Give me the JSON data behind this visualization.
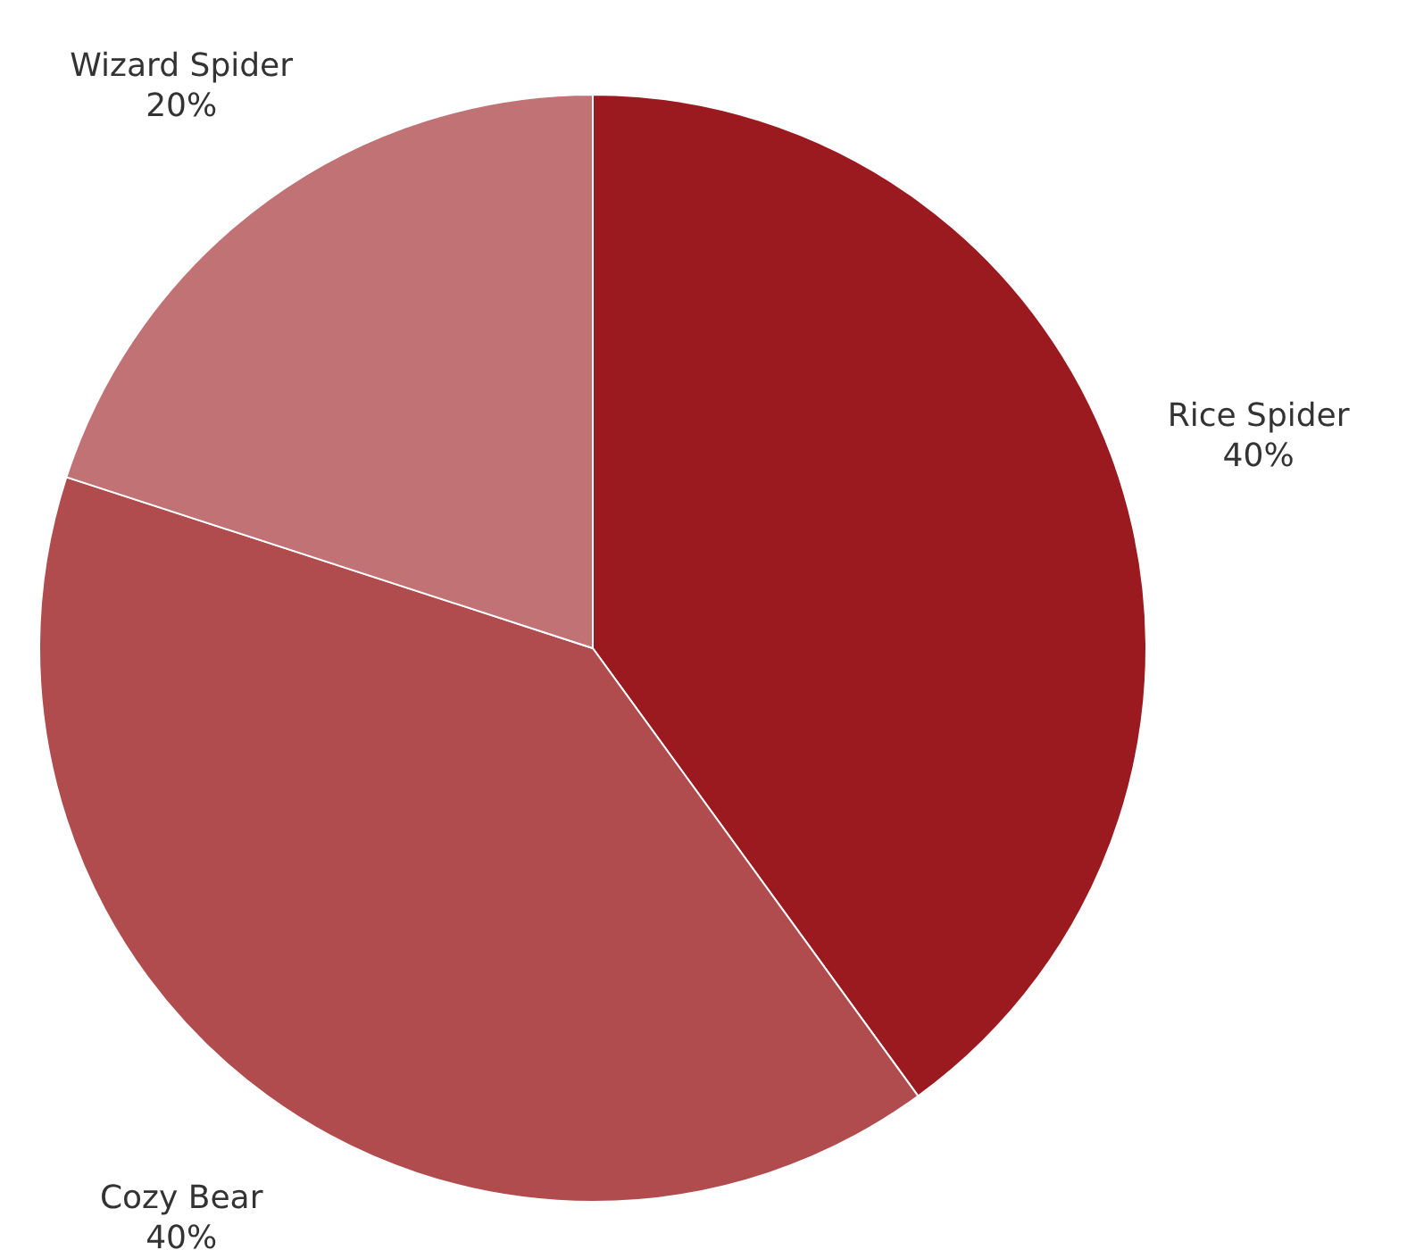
{
  "chart_data": {
    "type": "pie",
    "categories": [
      "Rice Spider",
      "Cozy Bear",
      "Wizard Spider"
    ],
    "values": [
      40,
      40,
      20
    ],
    "colors": [
      "#9b1a20",
      "#b04b4e",
      "#c07275"
    ],
    "value_labels": [
      "40%",
      "40%",
      "20%"
    ]
  }
}
